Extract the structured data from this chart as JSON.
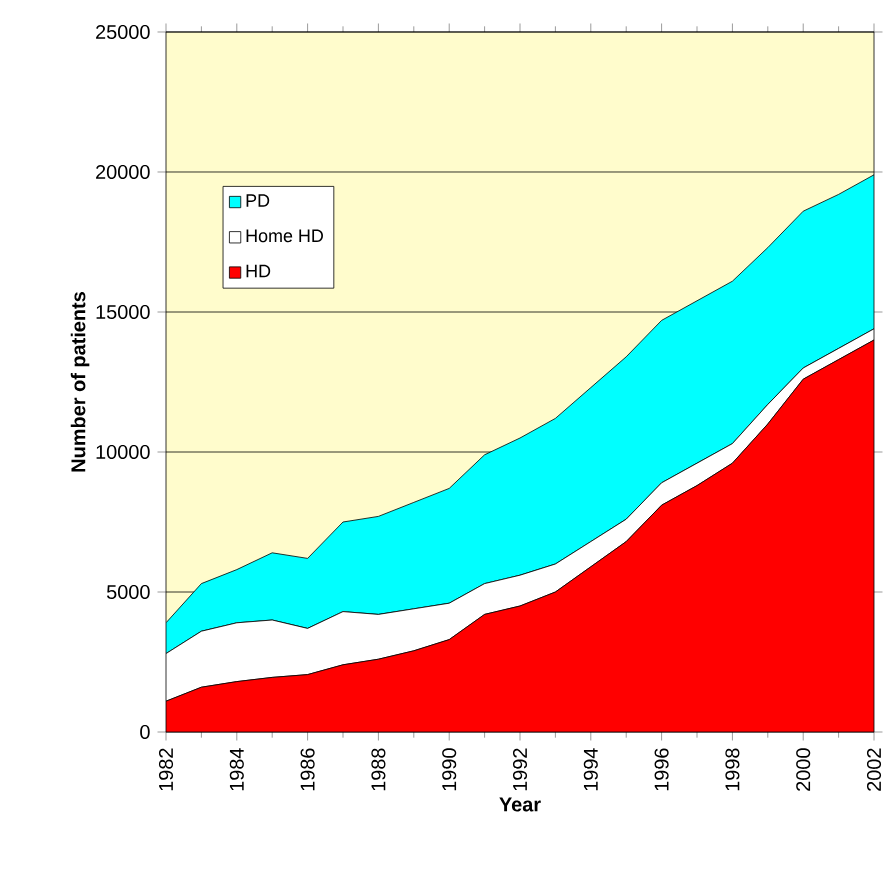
{
  "chart_data": {
    "type": "area",
    "stacked": true,
    "xlabel": "Year",
    "ylabel": "Number of patients",
    "x": [
      1982,
      1983,
      1984,
      1985,
      1986,
      1987,
      1988,
      1989,
      1990,
      1991,
      1992,
      1993,
      1994,
      1995,
      1996,
      1997,
      1998,
      1999,
      2000,
      2001,
      2002
    ],
    "xlim": [
      1982,
      2002
    ],
    "xticks": [
      1982,
      1984,
      1986,
      1988,
      1990,
      1992,
      1994,
      1996,
      1998,
      2000,
      2002
    ],
    "ylim": [
      0,
      25000
    ],
    "yticks": [
      0,
      5000,
      10000,
      15000,
      20000,
      25000
    ],
    "grid": "y",
    "legend": "top left",
    "series": [
      {
        "name": "HD",
        "color": "#ff0000",
        "values": [
          1100,
          1600,
          1800,
          1950,
          2050,
          2400,
          2600,
          2900,
          3300,
          4200,
          4500,
          5000,
          5900,
          6800,
          8100,
          8800,
          9600,
          11000,
          12600,
          13300,
          14000
        ]
      },
      {
        "name": "Home HD",
        "color": "#ffffff",
        "values": [
          1700,
          2000,
          2100,
          2050,
          1650,
          1900,
          1600,
          1500,
          1300,
          1100,
          1100,
          1000,
          900,
          800,
          800,
          800,
          700,
          700,
          400,
          400,
          400
        ]
      },
      {
        "name": "PD",
        "color": "#00ffff",
        "values": [
          1100,
          1700,
          1900,
          2400,
          2500,
          3200,
          3500,
          3800,
          4100,
          4600,
          4900,
          5200,
          5500,
          5800,
          5800,
          5800,
          5800,
          5600,
          5600,
          5500,
          5500
        ]
      }
    ]
  }
}
